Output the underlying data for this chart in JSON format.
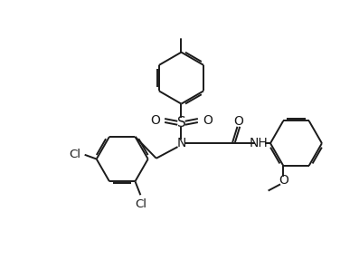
{
  "bg_color": "#ffffff",
  "line_color": "#1a1a1a",
  "line_width": 1.4,
  "figsize": [
    3.97,
    2.87
  ],
  "dpi": 100,
  "xlim": [
    0,
    10
  ],
  "ylim": [
    0,
    7.2
  ]
}
